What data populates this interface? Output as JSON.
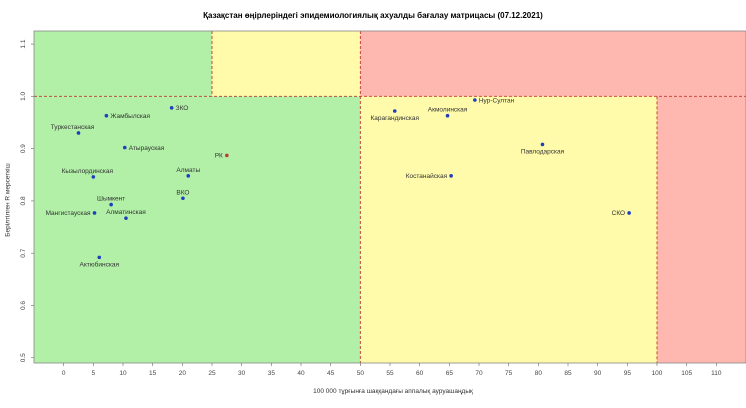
{
  "chart_data": {
    "type": "scatter",
    "title": "Қазақстан өңірлеріндегі эпидемиологиялық ахуалды бағалау матрицасы  (07.12.2021)",
    "xlabel": "100 000 тұрғынға шаққандағы аппалық ауруашаңдық",
    "ylabel": "Берілтілген R мерсеткіш",
    "xlim": [
      -5,
      115
    ],
    "ylim": [
      0.49,
      1.125
    ],
    "x_ticks": [
      0,
      5,
      10,
      15,
      20,
      25,
      30,
      35,
      40,
      45,
      50,
      55,
      60,
      65,
      70,
      75,
      80,
      85,
      90,
      95,
      100,
      105,
      110
    ],
    "y_ticks": [
      0.5,
      0.6,
      0.7,
      0.8,
      0.9,
      1.0,
      1.1
    ],
    "y_tick_labels": [
      "0.5",
      "0.6",
      "0.7",
      "0.8",
      "0.9",
      "1.0",
      "1.1"
    ],
    "zones": [
      {
        "x": [
          -5,
          50
        ],
        "y": [
          0.49,
          1.0
        ],
        "color": "#b2f0a8"
      },
      {
        "x": [
          -5,
          25
        ],
        "y": [
          1.0,
          1.125
        ],
        "color": "#b2f0a8"
      },
      {
        "x": [
          25,
          50
        ],
        "y": [
          1.0,
          1.125
        ],
        "color": "#fffbaa"
      },
      {
        "x": [
          50,
          100
        ],
        "y": [
          0.49,
          1.0
        ],
        "color": "#fffbaa"
      },
      {
        "x": [
          50,
          115
        ],
        "y": [
          1.0,
          1.125
        ],
        "color": "#ffb8b0"
      },
      {
        "x": [
          100,
          115
        ],
        "y": [
          0.49,
          1.0
        ],
        "color": "#ffb8b0"
      }
    ],
    "threshold_lines": [
      {
        "orientation": "horizontal",
        "value": 1.0
      },
      {
        "orientation": "vertical",
        "value": 25,
        "from": 1.0,
        "to": 1.125
      },
      {
        "orientation": "vertical",
        "value": 50,
        "from": 0.49,
        "to": 1.125
      },
      {
        "orientation": "vertical",
        "value": 100,
        "from": 0.49,
        "to": 1.0
      }
    ],
    "line_color": "#c0392b",
    "point_color": "#1f3fbf",
    "highlight_color": "#c0392b",
    "points": [
      {
        "name": "ЗКО",
        "x": 18.2,
        "y": 0.978,
        "anchor": "right"
      },
      {
        "name": "Жамбылская",
        "x": 7.2,
        "y": 0.963,
        "anchor": "right"
      },
      {
        "name": "Туркестанская",
        "x": 2.5,
        "y": 0.93,
        "anchor": "above-left"
      },
      {
        "name": "Атырауская",
        "x": 10.3,
        "y": 0.902,
        "anchor": "right"
      },
      {
        "name": "РК",
        "x": 27.5,
        "y": 0.887,
        "anchor": "left",
        "highlight": true
      },
      {
        "name": "Кызылординская",
        "x": 5.0,
        "y": 0.846,
        "anchor": "above-left"
      },
      {
        "name": "Алматы",
        "x": 21.0,
        "y": 0.848,
        "anchor": "above-center"
      },
      {
        "name": "ВКО",
        "x": 20.1,
        "y": 0.805,
        "anchor": "above-center"
      },
      {
        "name": "Шымкент",
        "x": 8.0,
        "y": 0.793,
        "anchor": "above-center"
      },
      {
        "name": "Мангистауская",
        "x": 5.2,
        "y": 0.777,
        "anchor": "left"
      },
      {
        "name": "Алматинская",
        "x": 10.5,
        "y": 0.767,
        "anchor": "above-center"
      },
      {
        "name": "Актюбинская",
        "x": 6.0,
        "y": 0.692,
        "anchor": "below-center"
      },
      {
        "name": "Нур-Султан",
        "x": 69.3,
        "y": 0.993,
        "anchor": "right"
      },
      {
        "name": "Карагандинская",
        "x": 55.8,
        "y": 0.972,
        "anchor": "below-center"
      },
      {
        "name": "Акмолинская",
        "x": 64.7,
        "y": 0.963,
        "anchor": "above-center"
      },
      {
        "name": "Павлодарская",
        "x": 80.7,
        "y": 0.908,
        "anchor": "below-center"
      },
      {
        "name": "Костанайская",
        "x": 65.3,
        "y": 0.848,
        "anchor": "left"
      },
      {
        "name": "СКО",
        "x": 95.3,
        "y": 0.777,
        "anchor": "left"
      }
    ]
  }
}
